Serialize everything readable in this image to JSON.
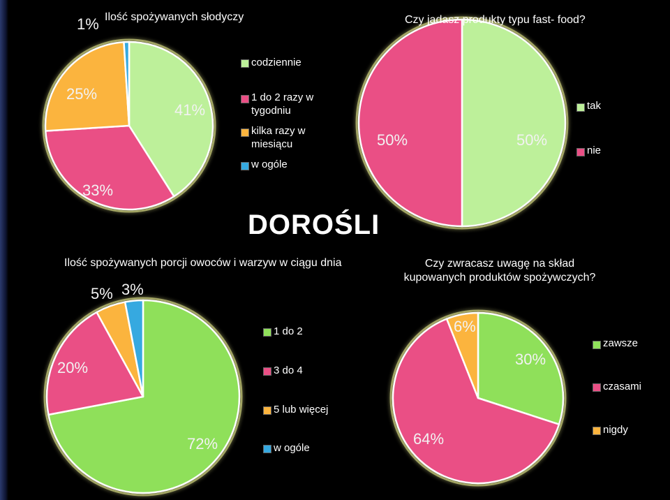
{
  "page_title": "DOROŚLI",
  "colors": {
    "green": "#8fe05a",
    "pink": "#ea4f85",
    "orange": "#fbb43e",
    "blue": "#36a9e0",
    "lightgreen": "#bdf09a",
    "white": "#ffffff"
  },
  "chart_data": [
    {
      "type": "pie",
      "title": "Ilość spożywanych słodyczy",
      "categories": [
        "codziennie",
        "1 do 2 razy w tygodniu",
        "kilka razy w miesiącu",
        "w ogóle"
      ],
      "values": [
        41,
        33,
        25,
        1
      ],
      "value_labels": [
        "41%",
        "33%",
        "25%",
        "1%"
      ],
      "legend": "right"
    },
    {
      "type": "pie",
      "title": "Czy jadasz produkty typu fast- food?",
      "categories": [
        "tak",
        "nie"
      ],
      "values": [
        50,
        50
      ],
      "value_labels": [
        "50%",
        "50%"
      ],
      "legend": "right"
    },
    {
      "type": "pie",
      "title": "Ilość spożywanych porcji owoców i warzyw w ciągu dnia",
      "categories": [
        "1 do 2",
        "3 do 4",
        "5 lub więcej",
        "w ogóle"
      ],
      "values": [
        72,
        20,
        5,
        3
      ],
      "value_labels": [
        "72%",
        "20%",
        "5%",
        "3%"
      ],
      "legend": "right"
    },
    {
      "type": "pie",
      "title": "Czy zwracasz uwagę na skład kupowanych produktów spożywczych?",
      "categories": [
        "zawsze",
        "czasami",
        "nigdy"
      ],
      "values": [
        30,
        64,
        6
      ],
      "value_labels": [
        "30%",
        "64%",
        "6%"
      ],
      "legend": "right"
    }
  ]
}
